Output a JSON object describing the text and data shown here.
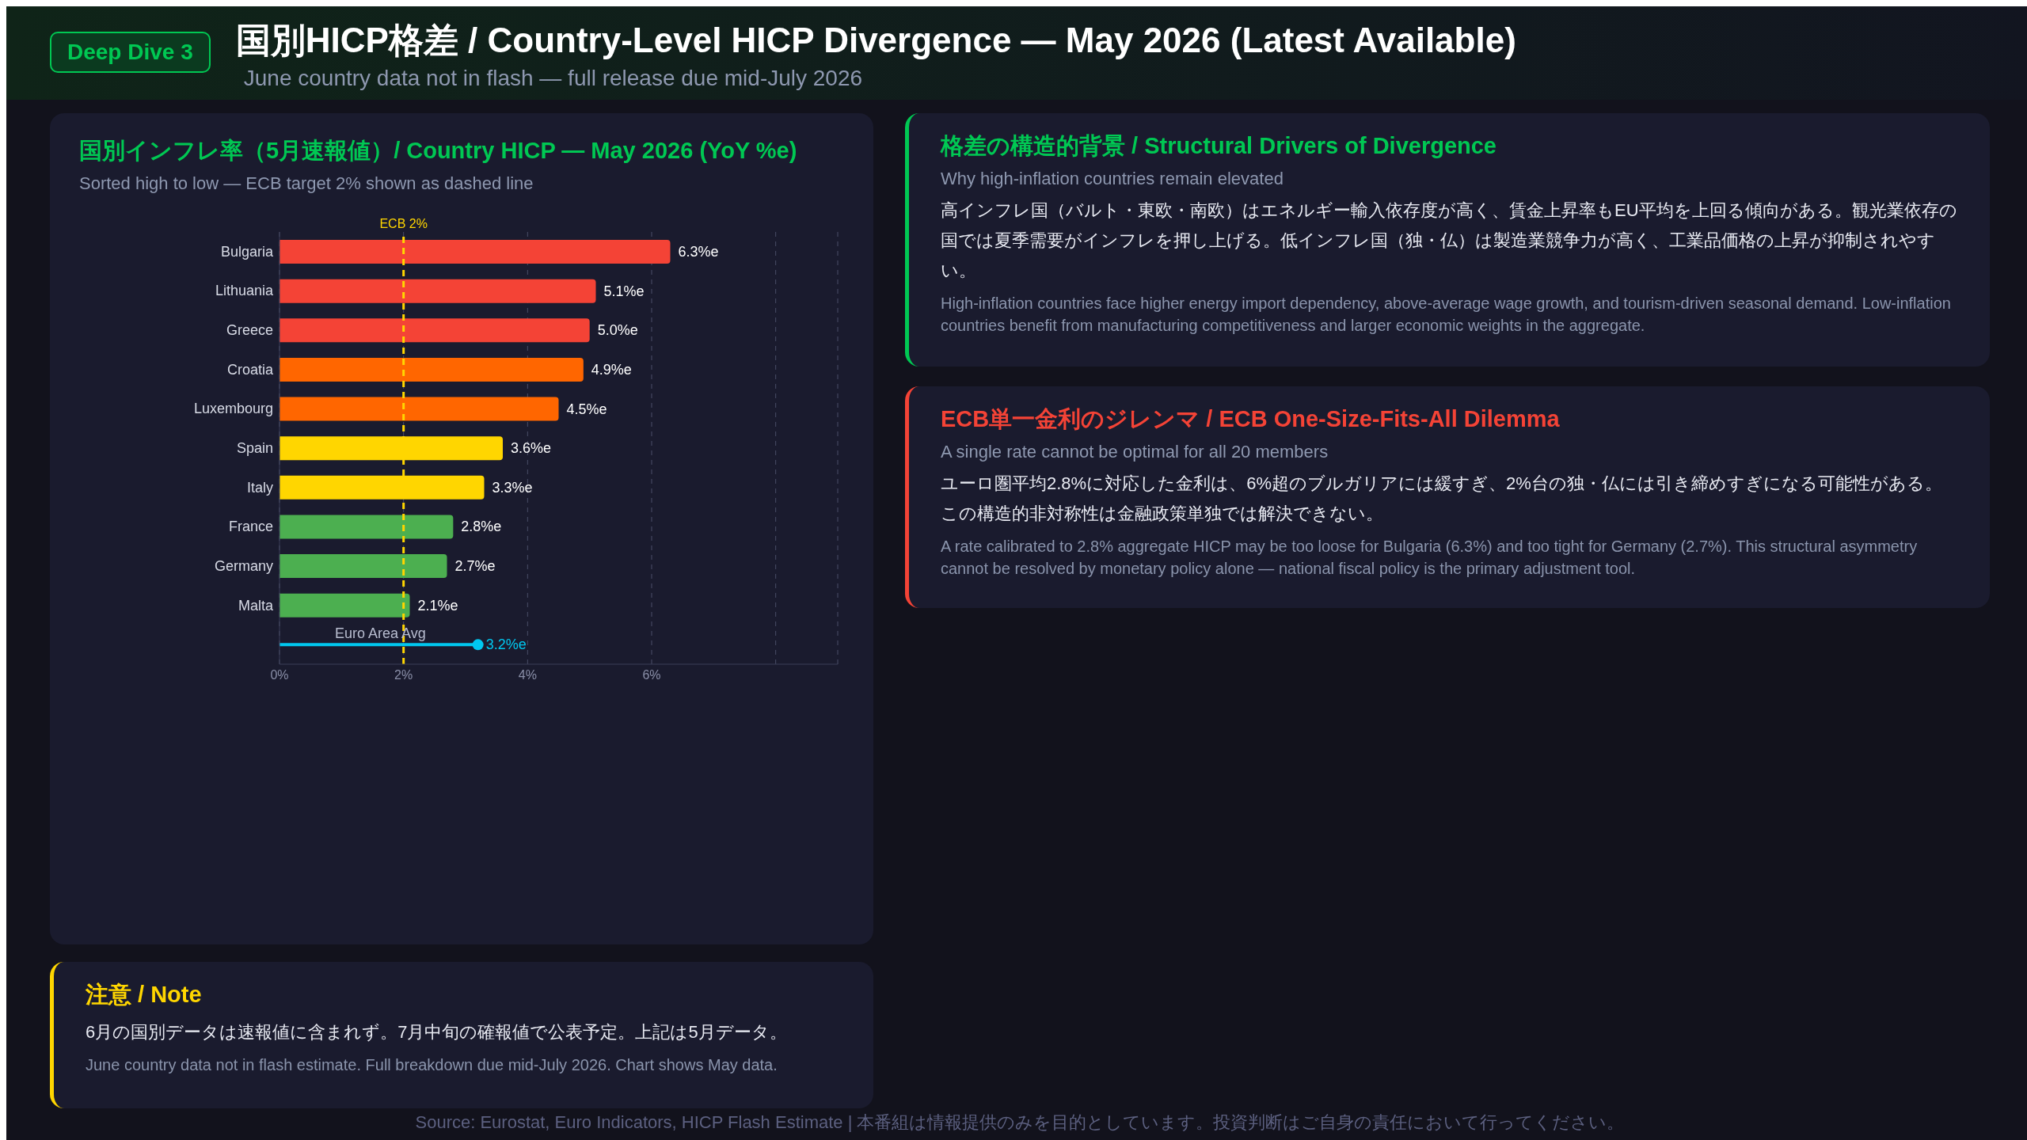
{
  "chart_data": [
    {
      "type": "other",
      "title": "国別HICP格差 / Country-Level HICP Divergence — May 2026 (Latest Available)",
      "subtitle": "June country data not in flash — full release due mid-July 2026",
      "annotations": [
        "Deep Dive 3"
      ],
      "color": "#00c853"
    },
    {
      "type": "bar",
      "orientation": "horizontal",
      "title": "国別インフレ率（5月速報値）/ Country HICP — May 2026 (YoY %e)",
      "subtitle": "Sorted high to low — ECB target 2% shown as dashed line",
      "categories": [
        "Bulgaria",
        "Lithuania",
        "Greece",
        "Croatia",
        "Luxembourg",
        "Spain",
        "Italy",
        "France",
        "Germany",
        "Malta",
        "Euro Area Avg"
      ],
      "series": [
        {
          "type": "bar",
          "colors": [
            "#f44336",
            "#f44336",
            "#f44336",
            "#ff6600",
            "#ff6600",
            "#ffd600",
            "#ffd600",
            "#4caf50",
            "#4caf50",
            "#4caf50",
            null
          ],
          "values": [
            6.3,
            5.1,
            5.0,
            4.9,
            4.5,
            3.6,
            3.3,
            2.8,
            2.7,
            2.1,
            null
          ],
          "value_labels": [
            "6.3%e",
            "5.1%e",
            "5.0%e",
            "4.9%e",
            "4.5%e",
            "3.6%e",
            "3.3%e",
            "2.8%e",
            "2.7%e",
            "2.1%e",
            null
          ]
        },
        {
          "type": "lollipop",
          "color": "#00c8f0",
          "values": [
            null,
            null,
            null,
            null,
            null,
            null,
            null,
            null,
            null,
            null,
            3.2
          ],
          "value_labels": [
            null,
            null,
            null,
            null,
            null,
            null,
            null,
            null,
            null,
            null,
            "3.2%e"
          ]
        }
      ],
      "xlim": [
        0,
        9
      ],
      "xticks": [
        {
          "value": 0,
          "label": "0%"
        },
        {
          "value": 2,
          "label": "2%"
        },
        {
          "value": 4,
          "label": "4%"
        },
        {
          "value": 6,
          "label": "6%"
        },
        {
          "value": 8,
          "label": null
        }
      ],
      "grid": "x",
      "ref_lines": [
        {
          "axis": "x",
          "value": 2,
          "label": "ECB 2%",
          "color": "#ffd600",
          "line_style": "dashed"
        }
      ]
    },
    {
      "type": "other",
      "title": "格差の構造的背景 / Structural Drivers of Divergence",
      "subtitle": "Why high-inflation countries remain elevated",
      "color": "#00c853",
      "annotations": [
        "高インフレ国（バルト・東欧・南欧）はエネルギー輸入依存度が高く、賃金上昇率もEU平均を上回る傾向がある。観光業依存の国では夏季需要がインフレを押し上げる。低インフレ国（独・仏）は製造業競争力が高く、工業品価格の上昇が抑制されやすい。",
        "High-inflation countries face higher energy import dependency, above-average wage growth, and tourism-driven seasonal demand. Low-inflation countries benefit from manufacturing competitiveness and larger economic weights in the aggregate."
      ]
    },
    {
      "type": "other",
      "title": "ECB単一金利のジレンマ / ECB One-Size-Fits-All Dilemma",
      "subtitle": "A single rate cannot be optimal for all 20 members",
      "color": "#f44336",
      "annotations": [
        "ユーロ圏平均2.8%に対応した金利は、6%超のブルガリアには緩すぎ、2%台の独・仏には引き締めすぎになる可能性がある。この構造的非対称性は金融政策単独では解決できない。",
        "A rate calibrated to 2.8% aggregate HICP may be too loose for Bulgaria (6.3%) and too tight for Germany (2.7%). This structural asymmetry cannot be resolved by monetary policy alone — national fiscal policy is the primary adjustment tool."
      ]
    },
    {
      "type": "other",
      "title": "注意 / Note",
      "color": "#ffd600",
      "annotations": [
        "6月の国別データは速報値に含まれず。7月中旬の確報値で公表予定。上記は5月データ。",
        "June country data not in flash estimate. Full breakdown due mid-July 2026. Chart shows May data."
      ]
    },
    {
      "type": "other",
      "annotations": [
        "Source: Eurostat, Euro Indicators, HICP Flash Estimate | 本番組は情報提供のみを目的としています。投資判断はご自身の責任において行ってください。"
      ]
    }
  ]
}
